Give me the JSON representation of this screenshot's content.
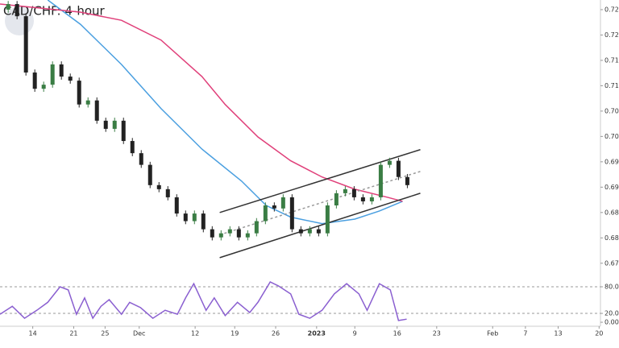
{
  "chart_data": [
    {
      "type": "candlestick",
      "title": "CAD/CHF: 4-hour",
      "xlim": [
        0,
        440
      ],
      "ylim": [
        0.6729,
        0.7269
      ],
      "yticks": [
        {
          "value": 0.725,
          "label": "0.7250"
        },
        {
          "value": 0.72,
          "label": "0.7200"
        },
        {
          "value": 0.715,
          "label": "0.7150"
        },
        {
          "value": 0.71,
          "label": "0.7100"
        },
        {
          "value": 0.705,
          "label": "0.7050"
        },
        {
          "value": 0.7,
          "label": "0.7000"
        },
        {
          "value": 0.695,
          "label": "0.6950"
        },
        {
          "value": 0.69,
          "label": "0.6900"
        },
        {
          "value": 0.685,
          "label": "0.6850"
        },
        {
          "value": 0.68,
          "label": "0.6800"
        },
        {
          "value": 0.675,
          "label": "0.6750"
        }
      ],
      "up_color": "#3a7d44",
      "down_color": "#222222",
      "x": [
        6,
        12.5,
        19,
        25.5,
        32,
        38.5,
        45,
        51.5,
        58,
        64.5,
        71,
        77.5,
        84,
        90.5,
        97,
        103.5,
        110,
        116.5,
        123,
        129.5,
        136,
        142.5,
        149,
        155.5,
        162,
        168.5,
        175,
        181.5,
        188,
        194.5,
        201,
        207.5,
        214,
        220.5,
        227,
        233.5,
        240,
        246.5,
        253,
        259.5,
        266,
        272.5,
        279,
        285.5,
        292,
        298.5
      ],
      "open": [
        0.725,
        0.7261,
        0.7237,
        0.7126,
        0.7094,
        0.7102,
        0.7142,
        0.7118,
        0.711,
        0.7063,
        0.7071,
        0.7031,
        0.7015,
        0.7031,
        0.6991,
        0.6967,
        0.6944,
        0.6904,
        0.6896,
        0.688,
        0.6848,
        0.6833,
        0.6848,
        0.6817,
        0.6801,
        0.6809,
        0.6817,
        0.6801,
        0.6809,
        0.6833,
        0.6864,
        0.6858,
        0.688,
        0.6817,
        0.6809,
        0.6817,
        0.6809,
        0.6864,
        0.6888,
        0.6896,
        0.688,
        0.6872,
        0.688,
        0.6944,
        0.6952,
        0.692
      ],
      "high": [
        0.7267,
        0.7267,
        0.7243,
        0.7132,
        0.7108,
        0.7148,
        0.7148,
        0.7124,
        0.7116,
        0.7077,
        0.7077,
        0.7037,
        0.7037,
        0.7037,
        0.6997,
        0.6973,
        0.695,
        0.691,
        0.6902,
        0.6886,
        0.6854,
        0.6854,
        0.6854,
        0.6823,
        0.6815,
        0.6823,
        0.6823,
        0.6815,
        0.6839,
        0.687,
        0.687,
        0.6886,
        0.6886,
        0.6823,
        0.6823,
        0.6823,
        0.687,
        0.6894,
        0.6902,
        0.6902,
        0.6886,
        0.6886,
        0.695,
        0.6958,
        0.6958,
        0.6926
      ],
      "low": [
        0.7244,
        0.7231,
        0.712,
        0.7088,
        0.7088,
        0.7096,
        0.7112,
        0.7104,
        0.7057,
        0.7057,
        0.7025,
        0.7009,
        0.7009,
        0.6985,
        0.6961,
        0.6938,
        0.6898,
        0.689,
        0.6874,
        0.6842,
        0.6827,
        0.6827,
        0.6811,
        0.6795,
        0.6795,
        0.6803,
        0.6795,
        0.6795,
        0.6803,
        0.6827,
        0.6852,
        0.6852,
        0.6811,
        0.6803,
        0.6803,
        0.6803,
        0.6803,
        0.6858,
        0.6882,
        0.6874,
        0.6866,
        0.6866,
        0.6874,
        0.6938,
        0.6914,
        0.6898
      ],
      "close": [
        0.7261,
        0.7237,
        0.7126,
        0.7094,
        0.7102,
        0.7142,
        0.7118,
        0.711,
        0.7063,
        0.7071,
        0.7031,
        0.7015,
        0.7031,
        0.6991,
        0.6967,
        0.6944,
        0.6904,
        0.6896,
        0.688,
        0.6848,
        0.6833,
        0.6848,
        0.6817,
        0.6801,
        0.6809,
        0.6817,
        0.6801,
        0.6809,
        0.6833,
        0.6864,
        0.6858,
        0.688,
        0.6817,
        0.6809,
        0.6817,
        0.6809,
        0.6864,
        0.6888,
        0.6896,
        0.688,
        0.6872,
        0.688,
        0.6944,
        0.6952,
        0.692,
        0.6904
      ],
      "lines": [
        {
          "color": "#4a9fe0",
          "x": [
            35,
            59,
            89,
            118,
            148,
            177,
            195,
            213,
            236,
            260,
            278,
            295
          ],
          "values": [
            0.7269,
            0.7221,
            0.7142,
            0.7055,
            0.6975,
            0.6912,
            0.6864,
            0.6841,
            0.6828,
            0.6837,
            0.6853,
            0.6872
          ]
        },
        {
          "color": "#e0407a",
          "x": [
            0,
            30,
            59,
            89,
            118,
            148,
            165,
            189,
            213,
            236,
            260,
            284,
            295
          ],
          "values": [
            0.7261,
            0.7253,
            0.7245,
            0.7229,
            0.719,
            0.7118,
            0.7063,
            0.6999,
            0.6952,
            0.692,
            0.6896,
            0.688,
            0.6872
          ]
        },
        {
          "color": "#333333",
          "x": [
            161,
            308
          ],
          "values": [
            0.685,
            0.6974
          ]
        },
        {
          "color": "#333333",
          "x": [
            161,
            308
          ],
          "values": [
            0.6761,
            0.6888
          ]
        },
        {
          "color": "#999999",
          "dashed": true,
          "x": [
            161,
            308
          ],
          "values": [
            0.6806,
            0.6931
          ]
        }
      ]
    },
    {
      "type": "line",
      "xlim": [
        0,
        440
      ],
      "ylim": [
        -9,
        100
      ],
      "yticks": [
        {
          "value": 80,
          "label": "80.00"
        },
        {
          "value": 20,
          "label": "20.00"
        },
        {
          "value": 0,
          "label": "0.00"
        }
      ],
      "levels": [
        80,
        20
      ],
      "color": "#8a5fd0",
      "x": [
        0,
        9,
        18,
        27,
        35,
        44,
        50,
        56,
        62,
        68,
        74,
        80,
        89,
        95,
        103,
        112,
        121,
        130,
        136,
        142,
        151,
        157,
        165,
        174,
        183,
        189,
        198,
        204,
        213,
        219,
        227,
        236,
        245,
        254,
        263,
        269,
        278,
        286,
        292,
        298
      ],
      "values": [
        18,
        36,
        9,
        27,
        45,
        80,
        73,
        18,
        55,
        9,
        36,
        51,
        18,
        45,
        33,
        9,
        27,
        18,
        55,
        87,
        27,
        55,
        15,
        45,
        22,
        45,
        91,
        82,
        64,
        18,
        9,
        27,
        64,
        87,
        64,
        27,
        87,
        73,
        4,
        7
      ],
      "xticks": [
        {
          "value": 24,
          "label": "14"
        },
        {
          "value": 54,
          "label": "21"
        },
        {
          "value": 77,
          "label": "25"
        },
        {
          "value": 102,
          "label": "Dec"
        },
        {
          "value": 143,
          "label": "12"
        },
        {
          "value": 172,
          "label": "19"
        },
        {
          "value": 202,
          "label": "26"
        },
        {
          "value": 232,
          "label": "2023"
        },
        {
          "value": 260,
          "label": "9"
        },
        {
          "value": 291,
          "label": "16"
        },
        {
          "value": 320,
          "label": "23"
        },
        {
          "value": 361,
          "label": "Feb"
        },
        {
          "value": 385,
          "label": "7"
        },
        {
          "value": 409,
          "label": "13"
        },
        {
          "value": 439,
          "label": "20"
        }
      ]
    }
  ]
}
